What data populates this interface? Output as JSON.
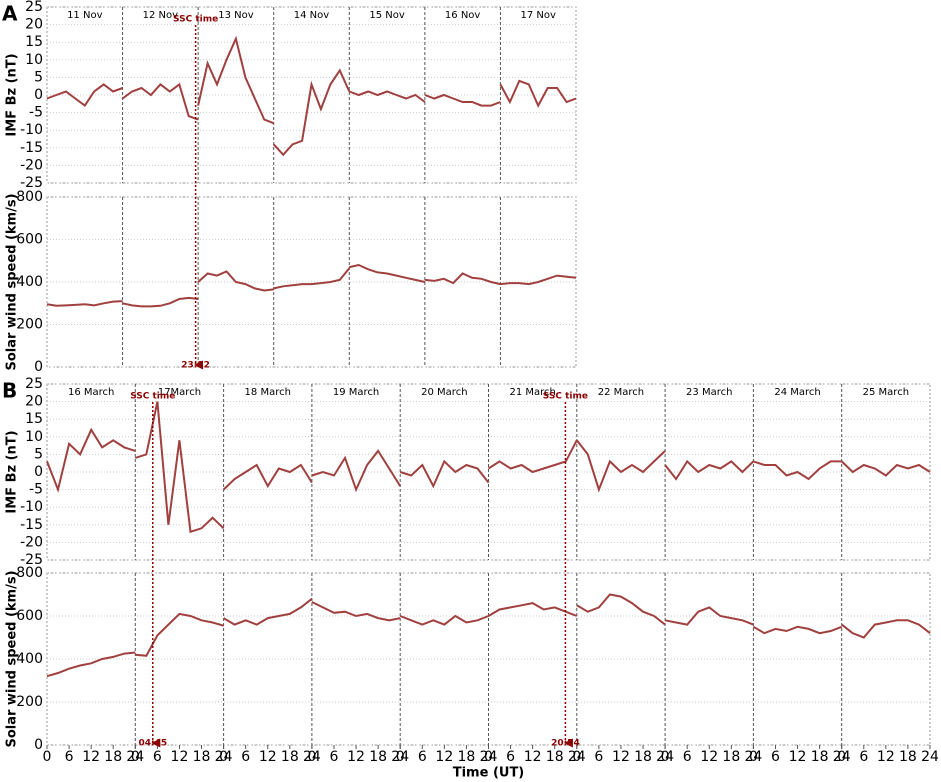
{
  "chart_data": [
    {
      "type": "line",
      "panel": "A",
      "ylabel": "IMF Bz (nT)",
      "color": "#a0403f",
      "grid": true,
      "categories": [
        "11 Nov",
        "12 Nov",
        "13 Nov",
        "14 Nov",
        "15 Nov",
        "16 Nov",
        "17 Nov"
      ],
      "x": [
        0,
        3,
        6,
        9,
        12,
        15,
        18,
        21,
        24
      ],
      "xlim": [
        0,
        24
      ],
      "ylim": [
        -25,
        25
      ],
      "yticks": [
        -25,
        -20,
        -15,
        -10,
        -5,
        0,
        5,
        10,
        15,
        20,
        25
      ],
      "values": [
        [
          -1,
          0,
          1,
          -1,
          -3,
          1,
          3,
          1,
          2
        ],
        [
          -1,
          1,
          2,
          0,
          3,
          1,
          3,
          -6,
          -7
        ],
        [
          -3,
          9,
          3,
          10,
          16,
          5,
          -1,
          -7,
          -8
        ],
        [
          -14,
          -17,
          -14,
          -13,
          3,
          -4,
          3,
          7,
          1
        ],
        [
          1,
          0,
          1,
          0,
          1,
          0,
          -1,
          0,
          -2
        ],
        [
          0,
          -1,
          0,
          -1,
          -2,
          -2,
          -3,
          -3,
          -2
        ],
        [
          3,
          -2,
          4,
          3,
          -3,
          2,
          2,
          -2,
          -1
        ]
      ],
      "events": [
        {
          "day": 1,
          "hour": 23.2,
          "label": "SSC time",
          "time": "23:12"
        }
      ]
    },
    {
      "type": "line",
      "ylabel": "Solar wind speed (km/s)",
      "color": "#a0403f",
      "grid": true,
      "x": [
        0,
        3,
        6,
        9,
        12,
        15,
        18,
        21,
        24
      ],
      "xlim": [
        0,
        24
      ],
      "ylim": [
        0,
        800
      ],
      "yticks": [
        0,
        200,
        400,
        600,
        800
      ],
      "values": [
        [
          295,
          288,
          290,
          292,
          295,
          290,
          300,
          308,
          310
        ],
        [
          300,
          290,
          285,
          285,
          288,
          300,
          320,
          325,
          320
        ],
        [
          400,
          440,
          430,
          450,
          400,
          390,
          370,
          360,
          365
        ],
        [
          370,
          380,
          385,
          390,
          390,
          395,
          400,
          410,
          465
        ],
        [
          470,
          480,
          460,
          445,
          440,
          430,
          420,
          410,
          400
        ],
        [
          410,
          405,
          415,
          395,
          440,
          420,
          415,
          400,
          390
        ],
        [
          390,
          395,
          395,
          390,
          400,
          415,
          430,
          425,
          420
        ]
      ]
    },
    {
      "type": "line",
      "panel": "B",
      "ylabel": "IMF Bz (nT)",
      "color": "#a0403f",
      "grid": true,
      "categories": [
        "16 March",
        "17March",
        "18 March",
        "19 March",
        "20 March",
        "21 March",
        "22 March",
        "23 March",
        "24 March",
        "25 March"
      ],
      "x": [
        0,
        3,
        6,
        9,
        12,
        15,
        18,
        21,
        24
      ],
      "xlim": [
        0,
        24
      ],
      "ylim": [
        -25,
        25
      ],
      "yticks": [
        -25,
        -20,
        -15,
        -10,
        -5,
        0,
        5,
        10,
        15,
        20,
        25
      ],
      "values": [
        [
          3,
          -5,
          8,
          5,
          12,
          7,
          9,
          7,
          6
        ],
        [
          4,
          5,
          20,
          -15,
          9,
          -17,
          -16,
          -13,
          -16
        ],
        [
          -5,
          -2,
          0,
          2,
          -4,
          1,
          0,
          2,
          -3
        ],
        [
          -1,
          0,
          -1,
          4,
          -5,
          2,
          6,
          1,
          -4
        ],
        [
          0,
          -1,
          2,
          -4,
          3,
          0,
          2,
          1,
          -3
        ],
        [
          1,
          3,
          1,
          2,
          0,
          1,
          2,
          3,
          9
        ],
        [
          9,
          5,
          -5,
          3,
          0,
          2,
          0,
          3,
          6
        ],
        [
          2,
          -2,
          3,
          0,
          2,
          1,
          3,
          0,
          3
        ],
        [
          3,
          2,
          2,
          -1,
          0,
          -2,
          1,
          3,
          3
        ],
        [
          3,
          0,
          2,
          1,
          -1,
          2,
          1,
          2,
          0
        ]
      ],
      "events": [
        {
          "day": 1,
          "hour": 4.75,
          "label": "SSC time",
          "time": "04:45"
        },
        {
          "day": 5,
          "hour": 20.9,
          "label": "SSC time",
          "time": "20:54"
        }
      ]
    },
    {
      "type": "line",
      "ylabel": "Solar wind speed (km/s)",
      "xlabel": "Time (UT)",
      "color": "#a0403f",
      "grid": true,
      "x": [
        0,
        3,
        6,
        9,
        12,
        15,
        18,
        21,
        24
      ],
      "xlim": [
        0,
        24
      ],
      "xticks": [
        0,
        6,
        12,
        18,
        24
      ],
      "ylim": [
        0,
        800
      ],
      "yticks": [
        0,
        200,
        400,
        600,
        800
      ],
      "values": [
        [
          320,
          335,
          355,
          370,
          380,
          400,
          410,
          425,
          430
        ],
        [
          420,
          415,
          510,
          560,
          610,
          600,
          580,
          570,
          555
        ],
        [
          590,
          560,
          580,
          560,
          590,
          600,
          610,
          640,
          680
        ],
        [
          665,
          640,
          615,
          620,
          600,
          610,
          590,
          580,
          590
        ],
        [
          600,
          580,
          560,
          580,
          560,
          600,
          570,
          580,
          600
        ],
        [
          600,
          630,
          640,
          650,
          660,
          630,
          640,
          620,
          600
        ],
        [
          650,
          620,
          640,
          700,
          690,
          660,
          620,
          600,
          560
        ],
        [
          580,
          570,
          560,
          620,
          640,
          600,
          590,
          580,
          560
        ],
        [
          550,
          520,
          540,
          530,
          550,
          540,
          520,
          530,
          550
        ],
        [
          560,
          520,
          500,
          560,
          570,
          580,
          580,
          560,
          520
        ]
      ]
    }
  ]
}
